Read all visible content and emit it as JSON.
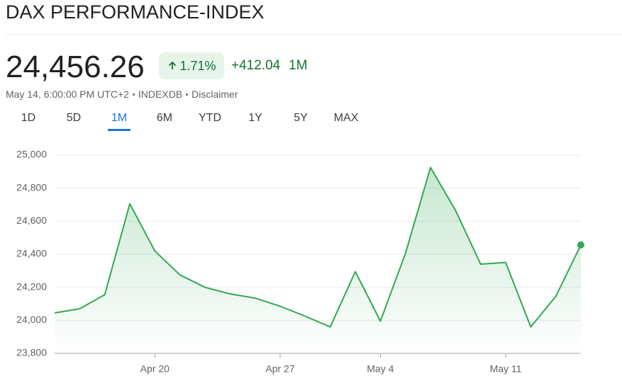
{
  "header": {
    "title": "DAX PERFORMANCE-INDEX"
  },
  "quote": {
    "price": "24,456.26",
    "change_percent": "1.71%",
    "change": "+412.04",
    "period": "1M",
    "timestamp": "May 14, 6:00:00 PM UTC+2",
    "source": "INDEXDB",
    "disclaimer": "Disclaimer"
  },
  "tabs": {
    "items": [
      "1D",
      "5D",
      "1M",
      "6M",
      "YTD",
      "1Y",
      "5Y",
      "MAX"
    ],
    "active": "1M"
  },
  "chart_data": {
    "type": "line",
    "categories": [
      null,
      null,
      null,
      null,
      "Apr 20",
      null,
      null,
      null,
      null,
      "Apr 27",
      null,
      null,
      null,
      "May 4",
      null,
      null,
      null,
      null,
      "May 11",
      null,
      null,
      null
    ],
    "series": [
      {
        "name": "DAX PERFORMANCE-INDEX",
        "color": "#34a853",
        "values": [
          24045,
          24070,
          24155,
          24705,
          24420,
          24275,
          24200,
          24160,
          24135,
          24085,
          24025,
          23960,
          24295,
          23995,
          24405,
          24925,
          24665,
          24340,
          24350,
          23960,
          24145,
          24456.26
        ]
      }
    ],
    "ylim": [
      23800,
      25000
    ],
    "yticks": [
      {
        "value": 23800,
        "label": "23,800"
      },
      {
        "value": 24000,
        "label": "24,000"
      },
      {
        "value": 24200,
        "label": "24,200"
      },
      {
        "value": 24400,
        "label": "24,400"
      },
      {
        "value": 24600,
        "label": "24,600"
      },
      {
        "value": 24800,
        "label": "24,800"
      },
      {
        "value": 25000,
        "label": "25,000"
      }
    ],
    "grid": true
  }
}
